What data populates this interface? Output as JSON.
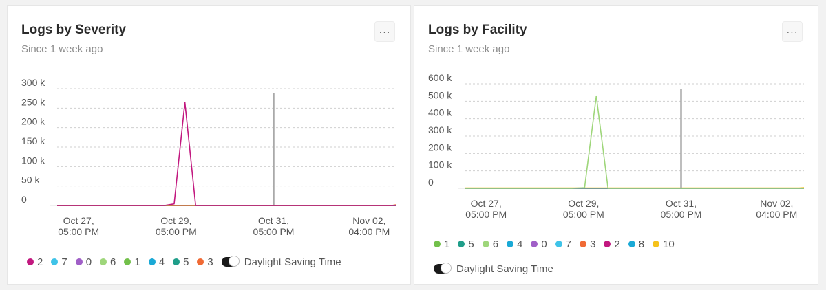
{
  "cards": [
    {
      "title": "Logs by Severity",
      "subtitle": "Since 1 week ago",
      "menu_label": "···",
      "dst_label": "Daylight Saving Time"
    },
    {
      "title": "Logs by Facility",
      "subtitle": "Since 1 week ago",
      "menu_label": "···",
      "dst_label": "Daylight Saving Time"
    }
  ],
  "chart_data": [
    {
      "type": "line",
      "title": "Logs by Severity",
      "subtitle": "Since 1 week ago",
      "ylim": [
        0,
        300000
      ],
      "y_ticks": [
        {
          "value": 0,
          "label": "0"
        },
        {
          "value": 50000,
          "label": "50 k"
        },
        {
          "value": 100000,
          "label": "100 k"
        },
        {
          "value": 150000,
          "label": "150 k"
        },
        {
          "value": 200000,
          "label": "200 k"
        },
        {
          "value": 250000,
          "label": "250 k"
        },
        {
          "value": 300000,
          "label": "300 k"
        }
      ],
      "xlim": [
        0,
        6.96
      ],
      "x_ticks": [
        {
          "value": 0.44,
          "line1": "Oct 27,",
          "line2": "05:00 PM"
        },
        {
          "value": 2.44,
          "line1": "Oct 29,",
          "line2": "05:00 PM"
        },
        {
          "value": 4.44,
          "line1": "Oct 31,",
          "line2": "05:00 PM"
        },
        {
          "value": 6.4,
          "line1": "Nov 02,",
          "line2": "04:00 PM"
        }
      ],
      "marker_x": 4.44,
      "grid": true,
      "legend_position": "bottom",
      "series": [
        {
          "name": "2",
          "color": "#c2187f",
          "x": [
            0,
            2.2,
            2.4,
            2.62,
            2.84,
            6.96
          ],
          "y": [
            0,
            0,
            4000,
            265000,
            0,
            0
          ]
        },
        {
          "name": "7",
          "color": "#3fc3e8",
          "x": [
            0,
            6.96
          ],
          "y": [
            0,
            0
          ]
        },
        {
          "name": "0",
          "color": "#a05fc7",
          "x": [
            0,
            6.96
          ],
          "y": [
            0,
            0
          ]
        },
        {
          "name": "6",
          "color": "#9ed67a",
          "x": [
            0,
            6.96
          ],
          "y": [
            0,
            0
          ]
        },
        {
          "name": "1",
          "color": "#72c04a",
          "x": [
            0,
            6.96
          ],
          "y": [
            0,
            0
          ]
        },
        {
          "name": "4",
          "color": "#1aa9d6",
          "x": [
            0,
            6.96
          ],
          "y": [
            0,
            0
          ]
        },
        {
          "name": "5",
          "color": "#1f9e8a",
          "x": [
            0,
            6.96
          ],
          "y": [
            0,
            0
          ]
        },
        {
          "name": "3",
          "color": "#f06a35",
          "x": [
            0,
            6.86,
            6.96
          ],
          "y": [
            0,
            0,
            2000
          ]
        }
      ]
    },
    {
      "type": "line",
      "title": "Logs by Facility",
      "subtitle": "Since 1 week ago",
      "ylim": [
        0,
        600000
      ],
      "y_ticks": [
        {
          "value": 0,
          "label": "0"
        },
        {
          "value": 100000,
          "label": "100 k"
        },
        {
          "value": 200000,
          "label": "200 k"
        },
        {
          "value": 300000,
          "label": "300 k"
        },
        {
          "value": 400000,
          "label": "400 k"
        },
        {
          "value": 500000,
          "label": "500 k"
        },
        {
          "value": 600000,
          "label": "600 k"
        }
      ],
      "xlim": [
        0,
        6.96
      ],
      "x_ticks": [
        {
          "value": 0.44,
          "line1": "Oct 27,",
          "line2": "05:00 PM"
        },
        {
          "value": 2.44,
          "line1": "Oct 29,",
          "line2": "05:00 PM"
        },
        {
          "value": 4.44,
          "line1": "Oct 31,",
          "line2": "05:00 PM"
        },
        {
          "value": 6.4,
          "line1": "Nov 02,",
          "line2": "04:00 PM"
        }
      ],
      "marker_x": 4.44,
      "grid": true,
      "legend_position": "bottom",
      "series": [
        {
          "name": "1",
          "color": "#72c04a",
          "x": [
            0,
            6.96
          ],
          "y": [
            0,
            0
          ]
        },
        {
          "name": "5",
          "color": "#1f9e8a",
          "x": [
            0,
            6.96
          ],
          "y": [
            0,
            0
          ]
        },
        {
          "name": "6",
          "color": "#9ed67a",
          "x": [
            0,
            2.2,
            2.46,
            2.7,
            2.94,
            6.96
          ],
          "y": [
            0,
            0,
            4000,
            530000,
            0,
            0
          ]
        },
        {
          "name": "4",
          "color": "#1aa9d6",
          "x": [
            0,
            6.96
          ],
          "y": [
            0,
            0
          ]
        },
        {
          "name": "0",
          "color": "#a05fc7",
          "x": [
            0,
            6.96
          ],
          "y": [
            0,
            0
          ]
        },
        {
          "name": "7",
          "color": "#3fc3e8",
          "x": [
            0,
            6.96
          ],
          "y": [
            0,
            0
          ]
        },
        {
          "name": "3",
          "color": "#f06a35",
          "x": [
            0,
            6.96
          ],
          "y": [
            0,
            0
          ]
        },
        {
          "name": "2",
          "color": "#c2187f",
          "x": [
            0,
            6.96
          ],
          "y": [
            0,
            0
          ]
        },
        {
          "name": "8",
          "color": "#1aa9d6",
          "x": [
            0,
            6.96
          ],
          "y": [
            0,
            0
          ]
        },
        {
          "name": "10",
          "color": "#f5c21b",
          "x": [
            0,
            6.86,
            6.96
          ],
          "y": [
            2000,
            2000,
            4000
          ]
        }
      ]
    }
  ]
}
